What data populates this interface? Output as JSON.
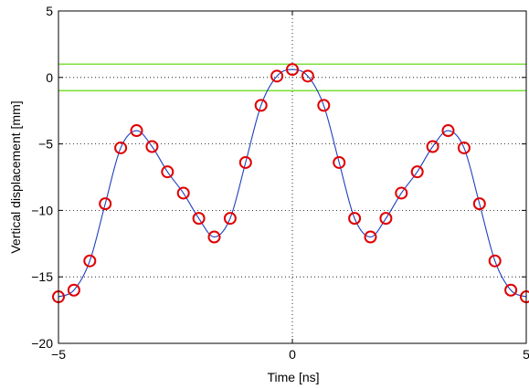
{
  "chart_data": {
    "type": "line",
    "xlabel": "Time [ns]",
    "ylabel": "Vertical displacement [mm]",
    "xlim": [
      -5,
      5
    ],
    "ylim": [
      -20,
      5
    ],
    "xticks": [
      -5,
      0,
      5
    ],
    "yticks": [
      -20,
      -15,
      -10,
      -5,
      0,
      5
    ],
    "xtick_labels": [
      "−5",
      "0",
      "5"
    ],
    "ytick_labels": [
      "−20",
      "−15",
      "−10",
      "−5",
      "0",
      "5"
    ],
    "grid": "dotted",
    "series": [
      {
        "style": "line",
        "color": "#1f3fbf",
        "x": [
          -5.0,
          -4.67,
          -4.33,
          -4.0,
          -3.67,
          -3.33,
          -3.0,
          -2.67,
          -2.33,
          -2.0,
          -1.67,
          -1.33,
          -1.0,
          -0.67,
          -0.33,
          0.0,
          0.33,
          0.67,
          1.0,
          1.33,
          1.67,
          2.0,
          2.33,
          2.67,
          3.0,
          3.33,
          3.67,
          4.0,
          4.33,
          4.67,
          5.0
        ],
        "y": [
          -16.5,
          -16.0,
          -13.8,
          -9.5,
          -5.3,
          -4.0,
          -5.2,
          -7.1,
          -8.7,
          -10.6,
          -12.0,
          -10.6,
          -6.4,
          -2.1,
          0.1,
          0.6,
          0.1,
          -2.1,
          -6.4,
          -10.6,
          -12.0,
          -10.6,
          -8.7,
          -7.1,
          -5.2,
          -4.0,
          -5.3,
          -9.5,
          -13.8,
          -16.0,
          -16.5
        ]
      },
      {
        "style": "markers",
        "marker": "open-circle",
        "color": "#e00000",
        "x": [
          -5.0,
          -4.67,
          -4.33,
          -4.0,
          -3.67,
          -3.33,
          -3.0,
          -2.67,
          -2.33,
          -2.0,
          -1.67,
          -1.33,
          -1.0,
          -0.67,
          -0.33,
          0.0,
          0.33,
          0.67,
          1.0,
          1.33,
          1.67,
          2.0,
          2.33,
          2.67,
          3.0,
          3.33,
          3.67,
          4.0,
          4.33,
          4.67,
          5.0
        ],
        "y": [
          -16.5,
          -16.0,
          -13.8,
          -9.5,
          -5.3,
          -4.0,
          -5.2,
          -7.1,
          -8.7,
          -10.6,
          -12.0,
          -10.6,
          -6.4,
          -2.1,
          0.1,
          0.6,
          0.1,
          -2.1,
          -6.4,
          -10.6,
          -12.0,
          -10.6,
          -8.7,
          -7.1,
          -5.2,
          -4.0,
          -5.3,
          -9.5,
          -13.8,
          -16.0,
          -16.5
        ]
      }
    ],
    "hlines": [
      {
        "y": 1.0,
        "color": "#7fe03c"
      },
      {
        "y": -1.0,
        "color": "#7fe03c"
      }
    ]
  }
}
